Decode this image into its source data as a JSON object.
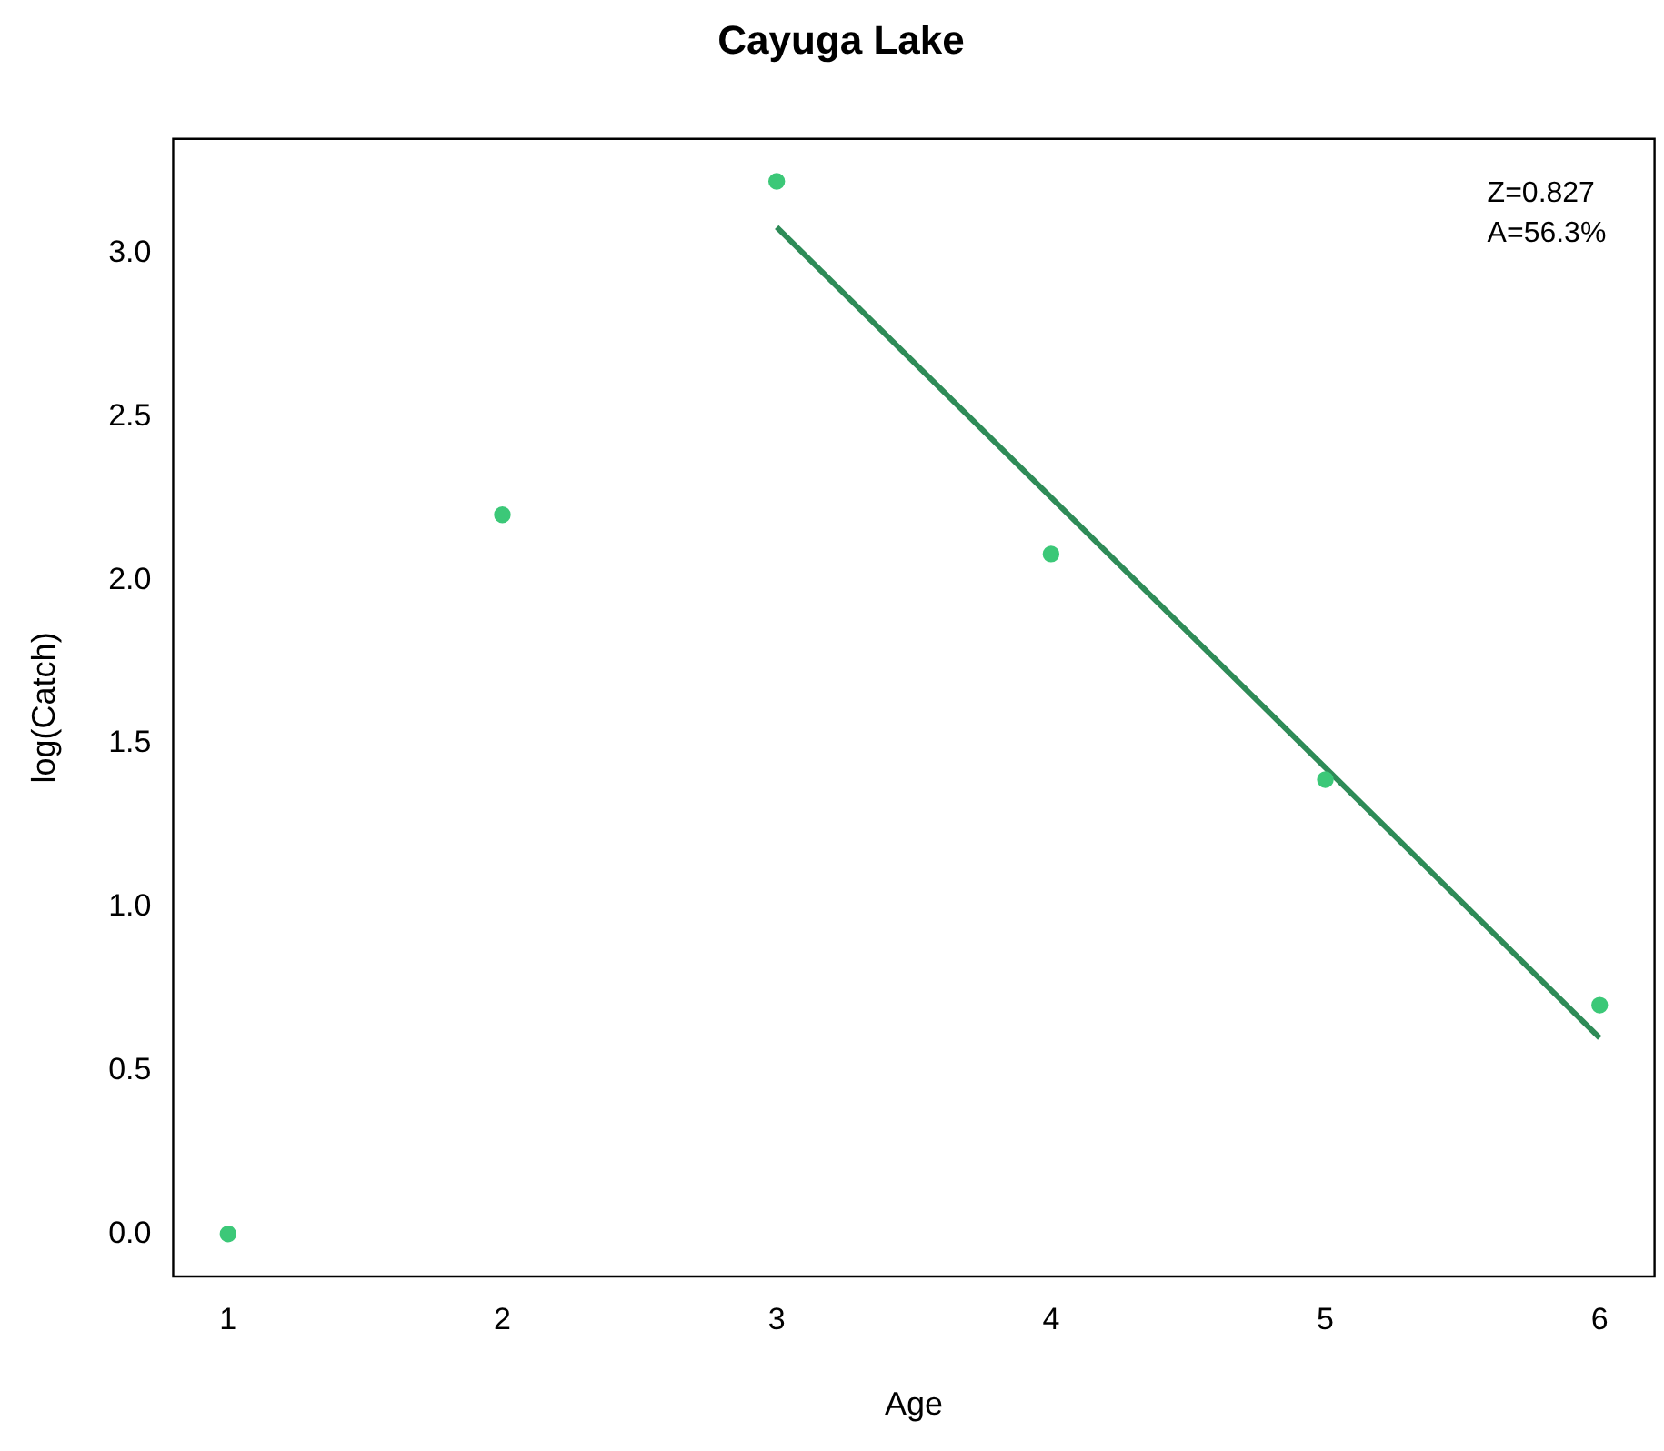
{
  "chart_data": {
    "type": "scatter",
    "title": "Cayuga Lake",
    "xlabel": "Age",
    "ylabel": "log(Catch)",
    "xlim": [
      0.8,
      6.2
    ],
    "xticks": [
      1,
      2,
      3,
      4,
      5,
      6
    ],
    "ylim": [
      -0.13,
      3.35
    ],
    "yticks": [
      {
        "value": 0,
        "label": "0.0"
      },
      0.5,
      {
        "value": 1,
        "label": "1.0"
      },
      1.5,
      {
        "value": 2,
        "label": "2.0"
      },
      2.5,
      {
        "value": 3,
        "label": "3.0"
      }
    ],
    "grid": false,
    "legend": false,
    "marker": "circle",
    "annotations": [
      "Z=0.827",
      "A=56.3%"
    ],
    "series": [
      {
        "color": "#3cc878",
        "x": [
          1,
          2
        ],
        "values": [
          0,
          2.2
        ]
      },
      {
        "color": "#3cc878",
        "x": [
          3,
          4,
          5,
          6
        ],
        "values": [
          3.22,
          2.08,
          1.39,
          0.7
        ]
      },
      {
        "type": "line",
        "marker": "none",
        "color": "#2e8b57",
        "x": [
          3,
          6
        ],
        "values": [
          3.08,
          0.6
        ]
      }
    ]
  }
}
